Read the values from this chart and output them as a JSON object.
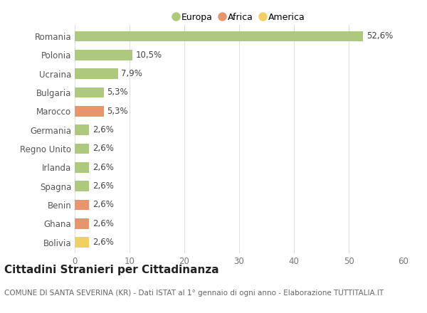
{
  "categories": [
    "Romania",
    "Polonia",
    "Ucraina",
    "Bulgaria",
    "Marocco",
    "Germania",
    "Regno Unito",
    "Irlanda",
    "Spagna",
    "Benin",
    "Ghana",
    "Bolivia"
  ],
  "values": [
    52.6,
    10.5,
    7.9,
    5.3,
    5.3,
    2.6,
    2.6,
    2.6,
    2.6,
    2.6,
    2.6,
    2.6
  ],
  "labels": [
    "52,6%",
    "10,5%",
    "7,9%",
    "5,3%",
    "5,3%",
    "2,6%",
    "2,6%",
    "2,6%",
    "2,6%",
    "2,6%",
    "2,6%",
    "2,6%"
  ],
  "colors": [
    "#adc97e",
    "#adc97e",
    "#adc97e",
    "#adc97e",
    "#e8956d",
    "#adc97e",
    "#adc97e",
    "#adc97e",
    "#adc97e",
    "#e8956d",
    "#e8956d",
    "#f0d060"
  ],
  "legend_labels": [
    "Europa",
    "Africa",
    "America"
  ],
  "legend_colors": [
    "#adc97e",
    "#e8956d",
    "#f0d060"
  ],
  "title": "Cittadini Stranieri per Cittadinanza",
  "subtitle": "COMUNE DI SANTA SEVERINA (KR) - Dati ISTAT al 1° gennaio di ogni anno - Elaborazione TUTTITALIA.IT",
  "xlim": [
    0,
    60
  ],
  "xticks": [
    0,
    10,
    20,
    30,
    40,
    50,
    60
  ],
  "background_color": "#ffffff",
  "grid_color": "#e0e0e0",
  "title_fontsize": 11,
  "subtitle_fontsize": 7.5,
  "label_fontsize": 8.5,
  "tick_fontsize": 8.5,
  "legend_fontsize": 9
}
